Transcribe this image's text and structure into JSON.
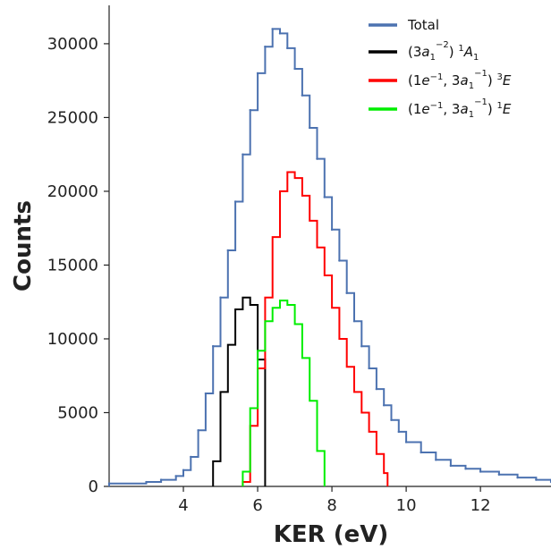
{
  "chart_data": {
    "type": "line",
    "xlabel": "KER (eV)",
    "ylabel": "Counts",
    "xlim": [
      2.0,
      13.9
    ],
    "ylim": [
      0,
      32600
    ],
    "xticks": [
      4,
      6,
      8,
      10,
      12
    ],
    "yticks": [
      0,
      5000,
      10000,
      15000,
      20000,
      25000,
      30000
    ],
    "xtick_labels": [
      "4",
      "6",
      "8",
      "10",
      "12"
    ],
    "ytick_labels": [
      "0",
      "5000",
      "10000",
      "15000",
      "20000",
      "25000",
      "30000"
    ],
    "grid": false,
    "legend_position": "top-right",
    "line_style": "step",
    "series": [
      {
        "name": "Total",
        "color": "#4c72b0",
        "x": [
          2.0,
          3.0,
          3.4,
          3.8,
          4.0,
          4.2,
          4.4,
          4.6,
          4.8,
          5.0,
          5.2,
          5.4,
          5.6,
          5.8,
          6.0,
          6.2,
          6.4,
          6.6,
          6.8,
          7.0,
          7.2,
          7.4,
          7.6,
          7.8,
          8.0,
          8.2,
          8.4,
          8.6,
          8.8,
          9.0,
          9.2,
          9.4,
          9.6,
          9.8,
          10.0,
          10.4,
          10.8,
          11.2,
          11.6,
          12.0,
          12.5,
          13.0,
          13.5,
          13.9
        ],
        "y": [
          200,
          300,
          450,
          700,
          1100,
          2000,
          3800,
          6300,
          9500,
          12800,
          16000,
          19300,
          22500,
          25500,
          28000,
          29800,
          31000,
          30700,
          29700,
          28300,
          26500,
          24300,
          22200,
          19600,
          17400,
          15300,
          13100,
          11200,
          9500,
          8000,
          6600,
          5500,
          4500,
          3700,
          3000,
          2300,
          1800,
          1400,
          1200,
          1000,
          800,
          600,
          450,
          300
        ]
      },
      {
        "name": "(3a1^-2) 1A1",
        "color": "#000000",
        "x": [
          4.8,
          5.0,
          5.2,
          5.4,
          5.6,
          5.8,
          6.0,
          6.2
        ],
        "y": [
          1700,
          6400,
          9600,
          12000,
          12800,
          12300,
          8600,
          2300
        ]
      },
      {
        "name": "(1e^-1, 3a1^-1) 3E",
        "color": "#ff0000",
        "x": [
          5.6,
          5.8,
          6.0,
          6.2,
          6.4,
          6.6,
          6.8,
          7.0,
          7.2,
          7.4,
          7.6,
          7.8,
          8.0,
          8.2,
          8.4,
          8.6,
          8.8,
          9.0,
          9.2,
          9.4,
          9.5
        ],
        "y": [
          300,
          4100,
          8000,
          12800,
          16900,
          20000,
          21300,
          20900,
          19700,
          18000,
          16200,
          14300,
          12100,
          10000,
          8100,
          6400,
          5000,
          3700,
          2200,
          900,
          100
        ]
      },
      {
        "name": "(1e^-1, 3a1^-1) 1E",
        "color": "#00ee00",
        "x": [
          5.6,
          5.8,
          6.0,
          6.2,
          6.4,
          6.6,
          6.8,
          7.0,
          7.2,
          7.4,
          7.6,
          7.8
        ],
        "y": [
          1000,
          5300,
          9200,
          11200,
          12100,
          12600,
          12300,
          11000,
          8700,
          5800,
          2400,
          200
        ]
      }
    ]
  }
}
